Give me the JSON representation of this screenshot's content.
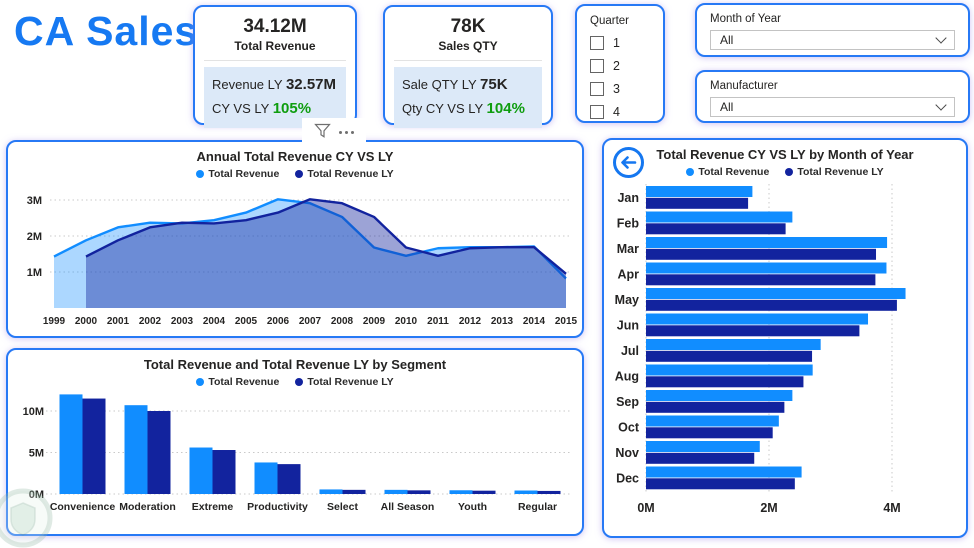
{
  "title": "CA Sales",
  "colors": {
    "accent": "#1679F2",
    "panel_border": "#2779F5",
    "series_cy": "#118DFF",
    "series_ly": "#12239E",
    "positive_green": "#0F9D0F",
    "card_info_bg": "#DCE9F8"
  },
  "cards": {
    "revenue": {
      "value": "34.12M",
      "label": "Total Revenue",
      "line1_label": "Revenue LY ",
      "line1_value": "32.57M",
      "line2_label": "CY VS LY ",
      "line2_value": "105%"
    },
    "qty": {
      "value": "78K",
      "label": "Sales QTY",
      "line1_label": "Sale QTY LY ",
      "line1_value": "75K",
      "line2_label": "Qty CY VS LY ",
      "line2_value": "104%"
    }
  },
  "slicers": {
    "quarter": {
      "title": "Quarter",
      "options": [
        "1",
        "2",
        "3",
        "4"
      ],
      "checked": [
        false,
        false,
        false,
        false
      ]
    },
    "month": {
      "label": "Month of Year",
      "value": "All"
    },
    "manufacturer": {
      "label": "Manufacturer",
      "value": "All"
    }
  },
  "legend": [
    {
      "label": "Total Revenue",
      "color": "#118DFF"
    },
    {
      "label": "Total Revenue LY",
      "color": "#12239E"
    }
  ],
  "chart_data": [
    {
      "id": "annual",
      "type": "area",
      "title": "Annual Total Revenue CY VS LY",
      "x": [
        1999,
        2000,
        2001,
        2002,
        2003,
        2004,
        2005,
        2006,
        2007,
        2008,
        2009,
        2010,
        2011,
        2012,
        2013,
        2014,
        2015
      ],
      "series": [
        {
          "name": "Total Revenue",
          "color": "#118DFF",
          "values": [
            1.43,
            1.88,
            2.24,
            2.37,
            2.35,
            2.44,
            2.65,
            3.02,
            2.91,
            2.53,
            1.68,
            1.45,
            1.66,
            1.69,
            1.69,
            1.71,
            0.82
          ]
        },
        {
          "name": "Total Revenue LY",
          "color": "#12239E",
          "values": [
            null,
            1.43,
            1.88,
            2.24,
            2.37,
            2.35,
            2.44,
            2.65,
            3.02,
            2.91,
            2.53,
            1.68,
            1.45,
            1.66,
            1.69,
            1.69,
            0.95
          ]
        }
      ],
      "unit": "M",
      "ylim": [
        0,
        3.4
      ],
      "ytick_values": [
        1,
        2,
        3
      ],
      "yticks": [
        "1M",
        "2M",
        "3M"
      ],
      "grid": true,
      "legend_position": "top"
    },
    {
      "id": "segment",
      "type": "bar",
      "title": "Total Revenue and Total Revenue LY by Segment",
      "categories": [
        "Convenience",
        "Moderation",
        "Extreme",
        "Productivity",
        "Select",
        "All Season",
        "Youth",
        "Regular"
      ],
      "series": [
        {
          "name": "Total Revenue",
          "color": "#118DFF",
          "values": [
            12.0,
            10.7,
            5.6,
            3.8,
            0.55,
            0.5,
            0.45,
            0.42
          ]
        },
        {
          "name": "Total Revenue LY",
          "color": "#12239E",
          "values": [
            11.5,
            10.0,
            5.3,
            3.6,
            0.5,
            0.44,
            0.4,
            0.37
          ]
        }
      ],
      "unit": "M",
      "ylim": [
        0,
        12.8
      ],
      "ytick_values": [
        0,
        5,
        10
      ],
      "yticks": [
        "0M",
        "5M",
        "10M"
      ],
      "grid": true,
      "legend_position": "top"
    },
    {
      "id": "monthly",
      "type": "bar-horizontal",
      "title": "Total Revenue CY VS LY by Month of Year",
      "categories": [
        "Jan",
        "Feb",
        "Mar",
        "Apr",
        "May",
        "Jun",
        "Jul",
        "Aug",
        "Sep",
        "Oct",
        "Nov",
        "Dec"
      ],
      "series": [
        {
          "name": "Total Revenue",
          "color": "#118DFF",
          "values": [
            1.73,
            2.38,
            3.92,
            3.91,
            4.22,
            3.61,
            2.84,
            2.71,
            2.38,
            2.16,
            1.85,
            2.53
          ]
        },
        {
          "name": "Total Revenue LY",
          "color": "#12239E",
          "values": [
            1.66,
            2.27,
            3.74,
            3.73,
            4.08,
            3.47,
            2.7,
            2.56,
            2.25,
            2.06,
            1.76,
            2.42
          ]
        }
      ],
      "unit": "M",
      "xlim": [
        0,
        4.7
      ],
      "xtick_values": [
        0,
        2,
        4
      ],
      "xticks": [
        "0M",
        "2M",
        "4M"
      ],
      "grid": true,
      "legend_position": "top"
    }
  ]
}
